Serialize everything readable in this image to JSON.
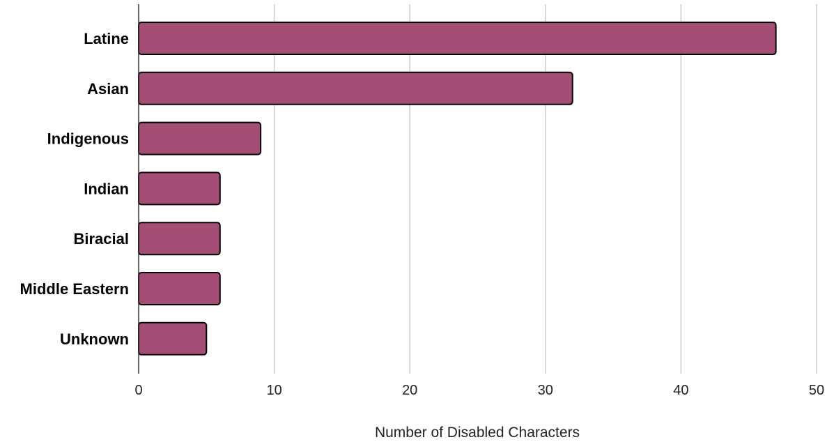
{
  "chart_data": {
    "type": "bar",
    "orientation": "horizontal",
    "categories": [
      "Latine",
      "Asian",
      "Indigenous",
      "Indian",
      "Biracial",
      "Middle Eastern",
      "Unknown"
    ],
    "values": [
      47,
      32,
      9,
      6,
      6,
      6,
      5
    ],
    "xlabel": "Number of Disabled Characters",
    "ylabel": "",
    "xlim": [
      0,
      50
    ],
    "xticks": [
      "0",
      "10",
      "20",
      "30",
      "40",
      "50"
    ],
    "grid": "vertical",
    "bar_color": "#a44d75",
    "bar_stroke": "#000000"
  }
}
